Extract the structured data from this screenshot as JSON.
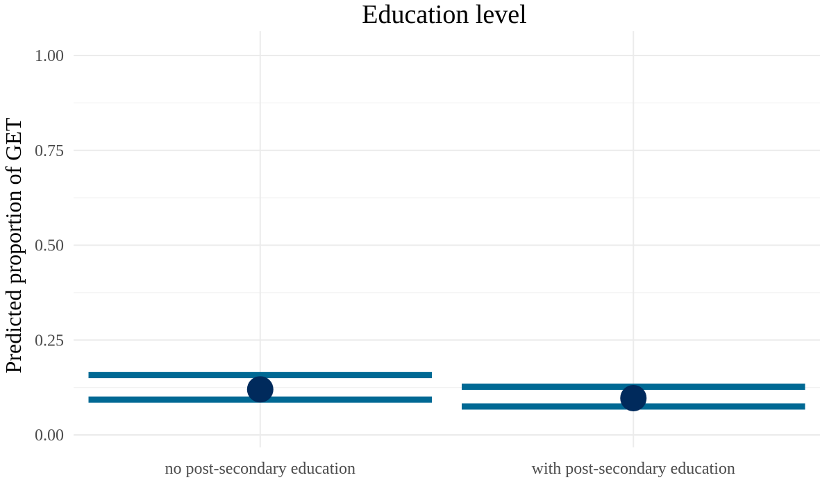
{
  "chart_data": {
    "type": "scatter",
    "title": "Education level",
    "xlabel": "",
    "ylabel": "Predicted proportion of GET",
    "categories": [
      "no post-secondary education",
      "with post-secondary education"
    ],
    "series": [
      {
        "values": [
          0.12,
          0.097
        ],
        "lower": [
          0.093,
          0.075
        ],
        "upper": [
          0.158,
          0.127
        ]
      }
    ],
    "ylim": [
      0,
      1
    ],
    "yticks": [
      0,
      0.25,
      0.5,
      0.75,
      1
    ],
    "ytick_labels": [
      "0.00",
      "0.25",
      "0.50",
      "0.75",
      "1.00"
    ],
    "grid": true,
    "colors": {
      "interval": "#006994",
      "point": "#002a5c"
    }
  }
}
